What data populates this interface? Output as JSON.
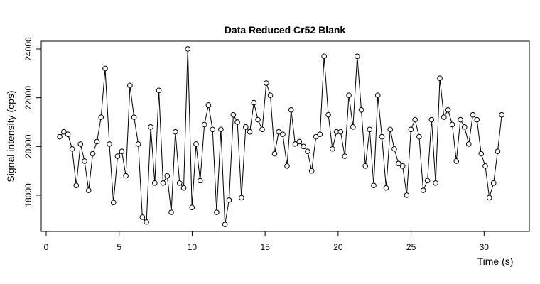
{
  "chart_data": {
    "type": "line",
    "title": "Data Reduced Cr52 Blank",
    "x_label": "Time (s)",
    "y_label": "Signal intensity (cps)",
    "color": "#000000",
    "markers": "open-circle",
    "xlim": [
      -0.34,
      33.1
    ],
    "ylim": [
      16514,
      24320
    ],
    "xticks": [
      0,
      5,
      10,
      15,
      20,
      25,
      30
    ],
    "yticks": [
      18000,
      20000,
      22000,
      24000
    ],
    "x": [
      0.93,
      1.21,
      1.49,
      1.78,
      2.06,
      2.35,
      2.63,
      2.91,
      3.19,
      3.48,
      3.76,
      4.04,
      4.33,
      4.61,
      4.89,
      5.18,
      5.46,
      5.74,
      6.02,
      6.31,
      6.59,
      6.87,
      7.16,
      7.44,
      7.72,
      8.01,
      8.29,
      8.57,
      8.85,
      9.14,
      9.42,
      9.7,
      9.99,
      10.27,
      10.55,
      10.84,
      11.12,
      11.4,
      11.68,
      11.97,
      12.25,
      12.53,
      12.82,
      13.1,
      13.38,
      13.67,
      13.95,
      14.23,
      14.51,
      14.8,
      15.08,
      15.36,
      15.65,
      15.93,
      16.21,
      16.5,
      16.78,
      17.06,
      17.34,
      17.63,
      17.91,
      18.19,
      18.48,
      18.76,
      19.04,
      19.33,
      19.61,
      19.89,
      20.17,
      20.46,
      20.74,
      21.02,
      21.31,
      21.59,
      21.87,
      22.16,
      22.44,
      22.72,
      23.0,
      23.29,
      23.57,
      23.85,
      24.14,
      24.42,
      24.7,
      24.99,
      25.27,
      25.55,
      25.83,
      26.12,
      26.4,
      26.68,
      26.97,
      27.25,
      27.53,
      27.82,
      28.1,
      28.38,
      28.66,
      28.95,
      29.23,
      29.51,
      29.8,
      30.08,
      30.36,
      30.65,
      30.93,
      31.21
    ],
    "values": [
      20400,
      20600,
      20500,
      19900,
      18400,
      20100,
      19400,
      18200,
      19700,
      20200,
      21200,
      23200,
      20100,
      17700,
      19600,
      19800,
      18800,
      22500,
      21200,
      20100,
      17100,
      16900,
      20800,
      18500,
      22300,
      18500,
      18800,
      17300,
      20600,
      18500,
      18300,
      24000,
      17500,
      20100,
      18600,
      20900,
      21700,
      20700,
      17300,
      20700,
      16800,
      17800,
      21300,
      21000,
      17900,
      20800,
      20600,
      21800,
      21100,
      20700,
      22600,
      22100,
      19700,
      20600,
      20500,
      19200,
      21500,
      20100,
      20200,
      20000,
      19800,
      19000,
      20400,
      20500,
      23700,
      21300,
      19900,
      20600,
      20600,
      19600,
      22100,
      20800,
      23700,
      21500,
      19200,
      20700,
      18400,
      22100,
      20400,
      18300,
      20700,
      19900,
      19300,
      19200,
      18000,
      20700,
      21100,
      20400,
      18200,
      18600,
      21100,
      18500,
      22800,
      21200,
      21500,
      20900,
      19400,
      21100,
      20800,
      20100,
      21300,
      21100,
      19700,
      19200,
      17900,
      18500,
      19800,
      21300
    ]
  }
}
